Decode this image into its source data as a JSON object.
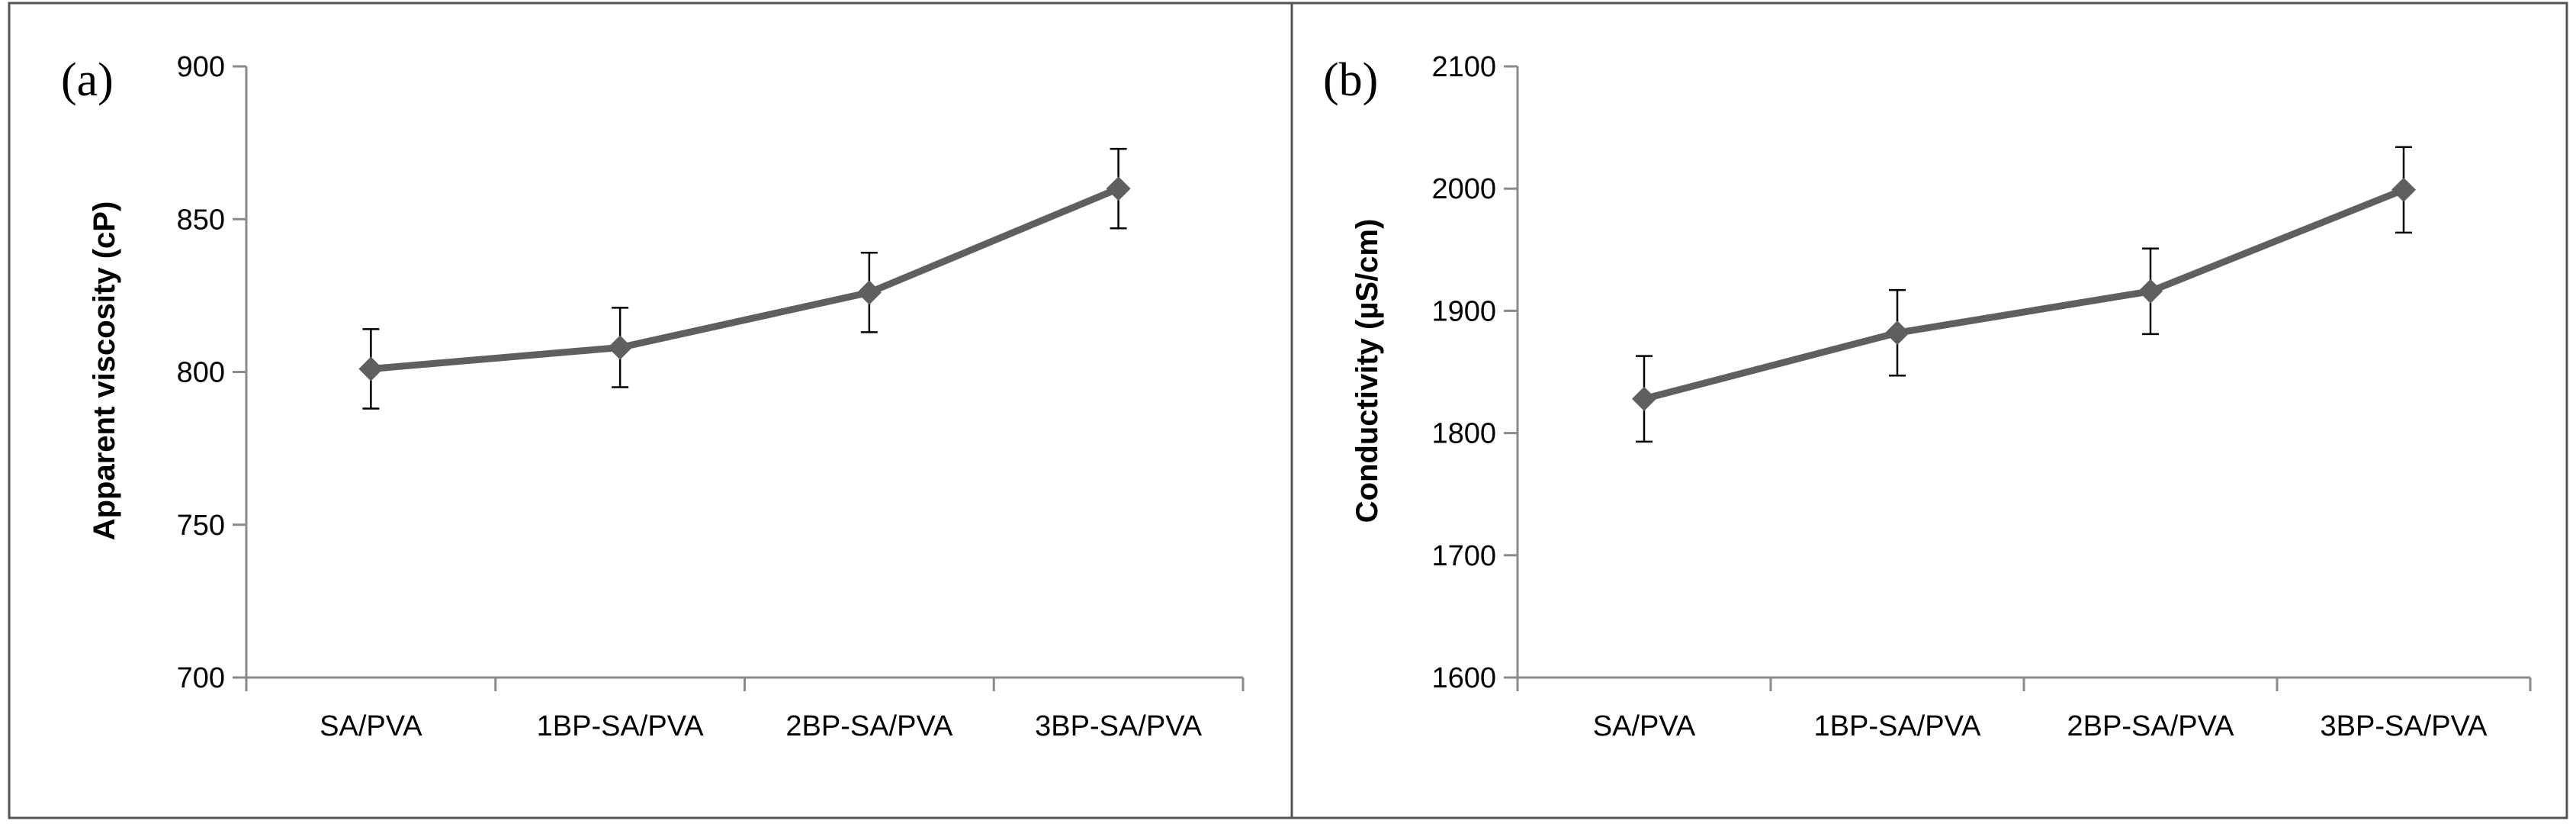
{
  "colors": {
    "series": "#5f5f5f",
    "axis": "#8a8a8a",
    "frame": "#555555",
    "text": "#000000"
  },
  "chart_data": [
    {
      "type": "line",
      "panel_label": "(a)",
      "title": "",
      "xlabel": "",
      "ylabel": "Apparent viscosity (cP)",
      "categories": [
        "SA/PVA",
        "1BP-SA/PVA",
        "2BP-SA/PVA",
        "3BP-SA/PVA"
      ],
      "ylim": [
        700,
        900
      ],
      "yticks": [
        700,
        750,
        800,
        850,
        900
      ],
      "grid": false,
      "series": [
        {
          "name": "Apparent viscosity",
          "marker": "diamond",
          "values": [
            801,
            808,
            826,
            860
          ],
          "errors": [
            13,
            13,
            13,
            13
          ]
        }
      ]
    },
    {
      "type": "line",
      "panel_label": "(b)",
      "title": "",
      "xlabel": "",
      "ylabel": "Conductivity (µS/cm)",
      "categories": [
        "SA/PVA",
        "1BP-SA/PVA",
        "2BP-SA/PVA",
        "3BP-SA/PVA"
      ],
      "ylim": [
        1600,
        2100
      ],
      "yticks": [
        1600,
        1700,
        1800,
        1900,
        2000,
        2100
      ],
      "grid": false,
      "series": [
        {
          "name": "Conductivity",
          "marker": "diamond",
          "values": [
            1828,
            1882,
            1916,
            1999
          ],
          "errors": [
            35,
            35,
            35,
            35
          ]
        }
      ]
    }
  ]
}
